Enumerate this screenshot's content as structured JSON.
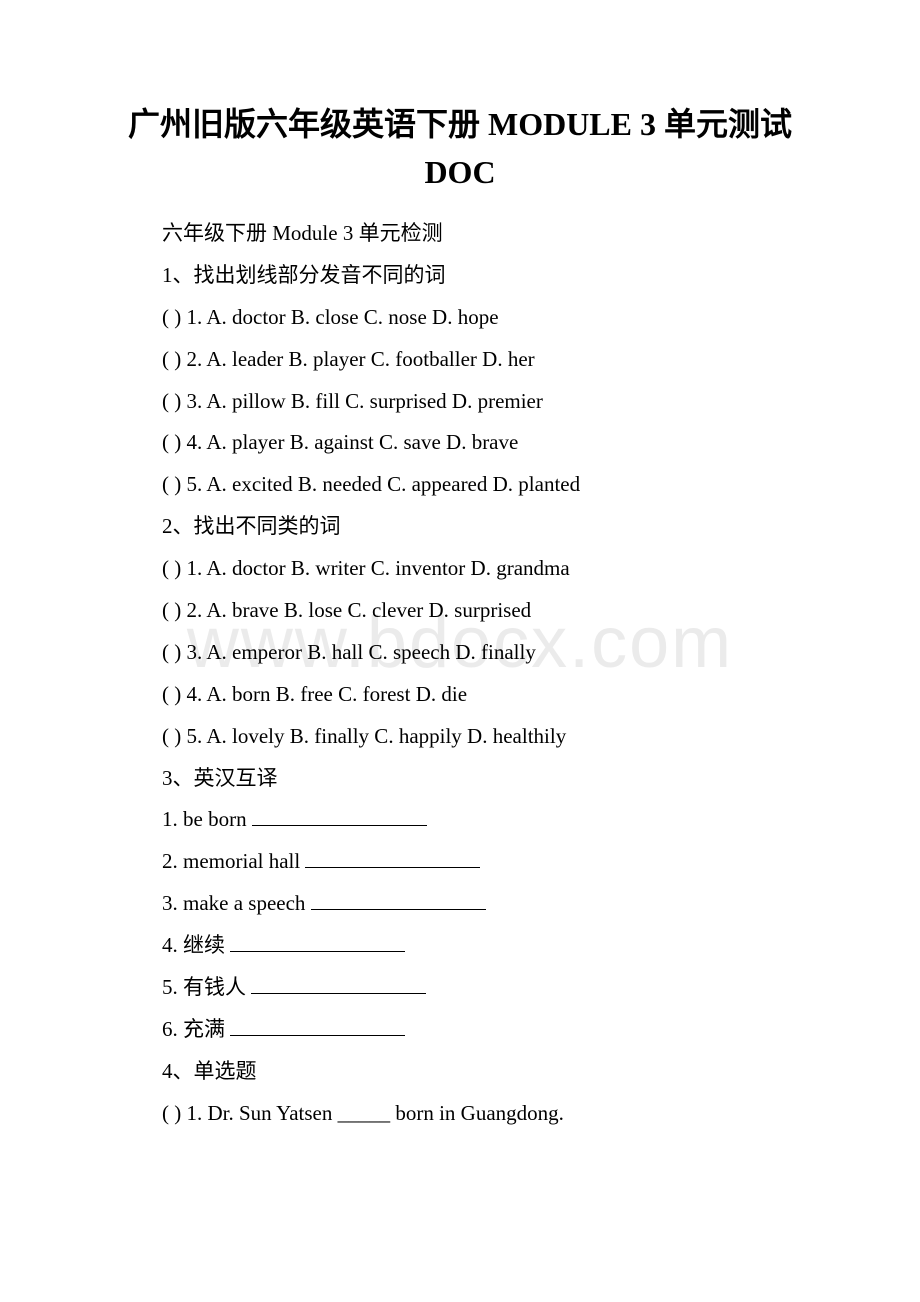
{
  "watermark": "www.bdocx.com",
  "title": "广州旧版六年级英语下册 MODULE 3 单元测试 DOC",
  "subtitle": "六年级下册 Module 3 单元检测",
  "section1": {
    "heading": "1、找出划线部分发音不同的词",
    "items": [
      "( ) 1. A. doctor   B. close  C. nose   D. hope",
      "( ) 2. A. leader  B. player  C. footballer  D. her",
      "( ) 3. A. pillow  B. fill   C. surprised  D. premier",
      "( ) 4. A. player   B. against  C. save   D. brave",
      "( ) 5. A. excited  B. needed  C. appeared  D. planted"
    ]
  },
  "section2": {
    "heading": "2、找出不同类的词",
    "items": [
      "( ) 1. A. doctor   B. writer  C. inventor   D. grandma",
      "( ) 2. A. brave   B. lose  C. clever   D. surprised",
      "( ) 3. A. emperor   B. hall  C. speech  D. finally",
      "( ) 4. A. born   B. free  C. forest   D. die",
      "( ) 5. A. lovely   B. finally  C. happily   D. healthily"
    ]
  },
  "section3": {
    "heading": "3、英汉互译",
    "items": [
      {
        "prefix": "1. be born    ",
        "blank_width": 175
      },
      {
        "prefix": "2. memorial hall  ",
        "blank_width": 175
      },
      {
        "prefix": "3. make a speech ",
        "blank_width": 175
      },
      {
        "prefix": "4. 继续    ",
        "blank_width": 175
      },
      {
        "prefix": "5. 有钱人    ",
        "blank_width": 175
      },
      {
        "prefix": "6. 充满    ",
        "blank_width": 175
      }
    ]
  },
  "section4": {
    "heading": "4、单选题",
    "items": [
      "( ) 1. Dr. Sun Yatsen _____ born in Guangdong."
    ]
  },
  "colors": {
    "background": "#ffffff",
    "text": "#000000",
    "watermark": "#ebebeb"
  },
  "fonts": {
    "title_size": 32,
    "body_size": 21
  }
}
